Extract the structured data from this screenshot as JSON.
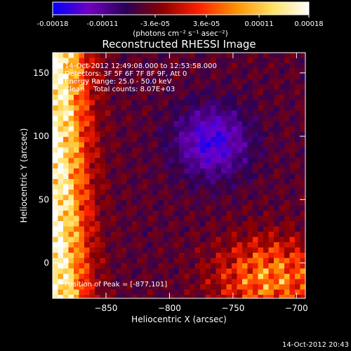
{
  "colorbar": {
    "tick_labels": [
      "-0.00018",
      "-0.00011",
      "-3.6e-05",
      "3.6e-05",
      "0.00011",
      "0.00018"
    ],
    "tick_values": [
      -0.00018,
      -0.00011,
      -3.6e-05,
      3.6e-05,
      0.00011,
      0.00018
    ],
    "range": [
      -0.00018,
      0.00018
    ],
    "unit_label": "(photons cm⁻² s⁻¹ asec⁻²)",
    "colors": [
      "#0000ff",
      "#7000c0",
      "#2a0058",
      "#8b0000",
      "#ff2000",
      "#ff9000",
      "#ffe060",
      "#ffffff"
    ]
  },
  "chart_data": {
    "type": "heatmap",
    "title": "Reconstructed RHESSI Image",
    "xlabel": "Heliocentric X (arcsec)",
    "ylabel": "Heliocentric Y (arcsec)",
    "xlim": [
      -892,
      -693
    ],
    "ylim": [
      -28,
      166
    ],
    "x_ticks": [
      -850,
      -800,
      -750,
      -700
    ],
    "y_ticks": [
      0,
      50,
      100,
      150
    ],
    "annotations": [
      "14-Oct-2012 12:49:08.000 to 12:53:58.000",
      "Detectors: 3F 5F 6F 7F 8F 9F, Att 0",
      "Energy Range: 25.0 - 50.0 keV",
      "Clean    Total counts: 8.07E+03"
    ],
    "peak_label": "Position of Peak = [-877,101]",
    "peak": [
      -877,
      101
    ],
    "grid": false
  },
  "footer": {
    "timestamp": "14-Oct-2012 20:43"
  }
}
